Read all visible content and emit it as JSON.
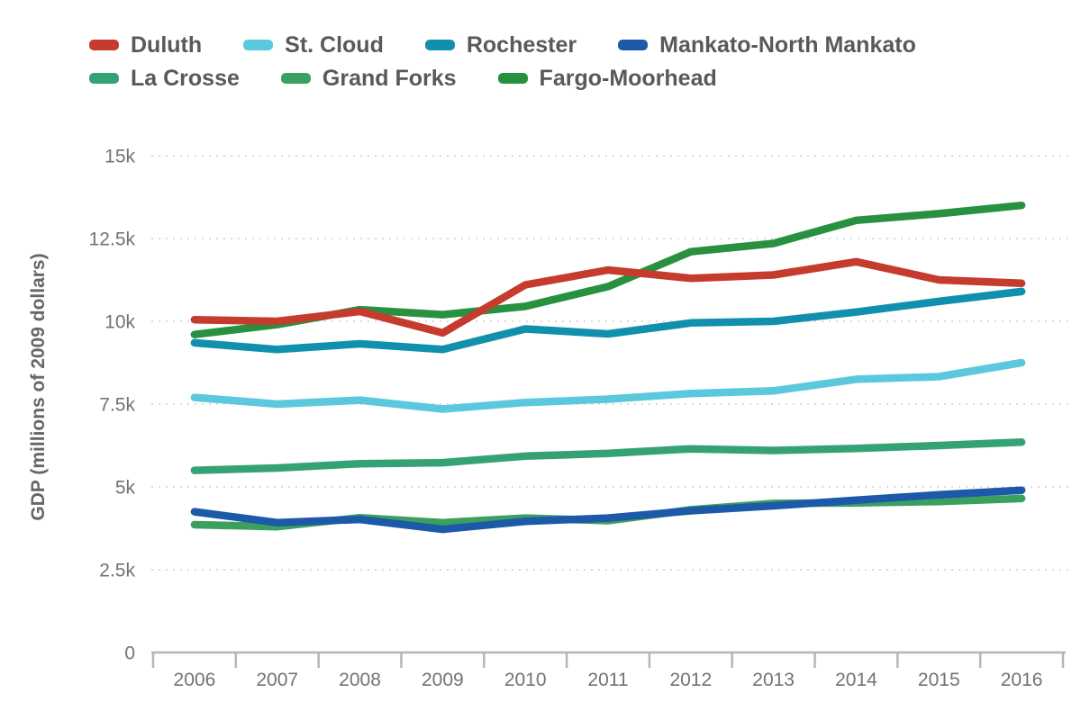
{
  "chart_data": {
    "type": "line",
    "title": "",
    "xlabel": "",
    "ylabel": "GDP (millions of 2009 dollars)",
    "x": [
      2006,
      2007,
      2008,
      2009,
      2010,
      2011,
      2012,
      2013,
      2014,
      2015,
      2016
    ],
    "x_tick_labels": [
      "2006",
      "2007",
      "2008",
      "2009",
      "2010",
      "2011",
      "2012",
      "2013",
      "2014",
      "2015",
      "2016"
    ],
    "ylim": [
      0,
      15000
    ],
    "y_ticks": [
      0,
      2500,
      5000,
      7500,
      10000,
      12500,
      15000
    ],
    "y_tick_labels": [
      "0",
      "2.5k",
      "5k",
      "7.5k",
      "10k",
      "12.5k",
      "15k"
    ],
    "grid": "horizontal-dotted",
    "legend_position": "top-left",
    "series": [
      {
        "name": "Duluth",
        "color": "#c53b2d",
        "values": [
          10050,
          10000,
          10300,
          9650,
          11100,
          11550,
          11300,
          11400,
          11800,
          11250,
          11150
        ]
      },
      {
        "name": "St. Cloud",
        "color": "#5cc8dd",
        "values": [
          7700,
          7500,
          7620,
          7350,
          7550,
          7650,
          7820,
          7900,
          8250,
          8330,
          8750
        ]
      },
      {
        "name": "Rochester",
        "color": "#1190ad",
        "values": [
          9350,
          9150,
          9320,
          9150,
          9770,
          9620,
          9950,
          10000,
          10280,
          10600,
          10900
        ]
      },
      {
        "name": "Mankato-North Mankato",
        "color": "#1c59a8",
        "values": [
          4250,
          3920,
          4020,
          3720,
          3960,
          4060,
          4280,
          4430,
          4600,
          4760,
          4900
        ]
      },
      {
        "name": "La Crosse",
        "color": "#35a275",
        "values": [
          5500,
          5570,
          5700,
          5730,
          5930,
          6010,
          6150,
          6100,
          6160,
          6250,
          6350
        ]
      },
      {
        "name": "Grand Forks",
        "color": "#3ba05e",
        "values": [
          3860,
          3800,
          4070,
          3920,
          4060,
          3980,
          4310,
          4500,
          4520,
          4560,
          4650
        ]
      },
      {
        "name": "Fargo-Moorhead",
        "color": "#28913f",
        "values": [
          9600,
          9900,
          10350,
          10200,
          10450,
          11050,
          12100,
          12350,
          13050,
          13250,
          13500
        ]
      }
    ]
  },
  "ui_colors": {
    "background": "#ffffff",
    "axis_line": "#b5b5b5",
    "gridline": "#dadada",
    "tick_label": "#737373",
    "legend_text": "#58595b",
    "y_axis_title": "#666666"
  }
}
